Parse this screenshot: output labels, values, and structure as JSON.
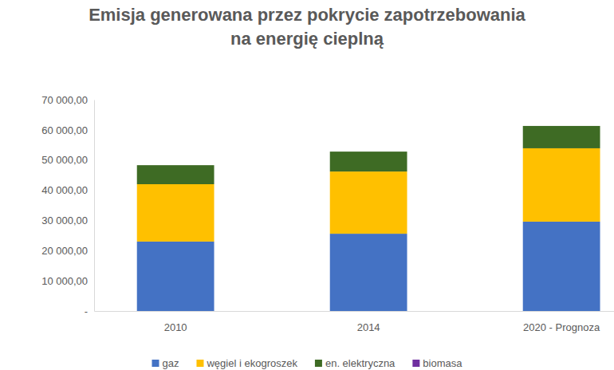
{
  "chart_data": {
    "type": "bar",
    "stacked": true,
    "title": "Emisja generowana przez pokrycie zapotrzebowania na energię cieplną",
    "categories": [
      "2010",
      "2014",
      "2020 - Prognoza"
    ],
    "series": [
      {
        "name": "gaz",
        "color": "#4472c4",
        "values": [
          23000,
          25600,
          29600
        ]
      },
      {
        "name": "węgiel i ekogroszek",
        "color": "#ffc000",
        "values": [
          19000,
          20600,
          24300
        ]
      },
      {
        "name": "en. elektryczna",
        "color": "#3e6b24",
        "values": [
          6300,
          6600,
          7400
        ]
      },
      {
        "name": "biomasa",
        "color": "#7030a0",
        "values": [
          0,
          0,
          0
        ]
      }
    ],
    "ylim": [
      0,
      70000
    ],
    "yticks": [
      {
        "value": 0,
        "label": "-"
      },
      {
        "value": 10000,
        "label": "10 000,00"
      },
      {
        "value": 20000,
        "label": "20 000,00"
      },
      {
        "value": 30000,
        "label": "30 000,00"
      },
      {
        "value": 40000,
        "label": "40 000,00"
      },
      {
        "value": 50000,
        "label": "50 000,00"
      },
      {
        "value": 60000,
        "label": "60 000,00"
      },
      {
        "value": 70000,
        "label": "70 000,00"
      }
    ],
    "grid": false,
    "legend": "bottom"
  }
}
